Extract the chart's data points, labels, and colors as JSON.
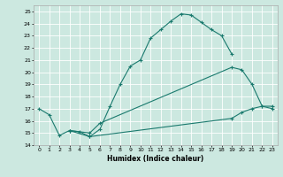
{
  "title": "",
  "xlabel": "Humidex (Indice chaleur)",
  "background_color": "#cce8e0",
  "grid_color": "#ffffff",
  "line_color": "#1a7a6e",
  "xlim": [
    -0.5,
    23.5
  ],
  "ylim": [
    14,
    25.5
  ],
  "xticks": [
    0,
    1,
    2,
    3,
    4,
    5,
    6,
    7,
    8,
    9,
    10,
    11,
    12,
    13,
    14,
    15,
    16,
    17,
    18,
    19,
    20,
    21,
    22,
    23
  ],
  "yticks": [
    14,
    15,
    16,
    17,
    18,
    19,
    20,
    21,
    22,
    23,
    24,
    25
  ],
  "series": [
    {
      "x": [
        0,
        1,
        2,
        3,
        4,
        5,
        6,
        7,
        8,
        9,
        10,
        11,
        12,
        13,
        14,
        15,
        16,
        17,
        18,
        19
      ],
      "y": [
        17.0,
        16.5,
        14.8,
        15.2,
        15.1,
        14.7,
        15.3,
        17.2,
        19.0,
        20.5,
        21.0,
        22.8,
        23.5,
        24.2,
        24.8,
        24.7,
        24.1,
        23.5,
        23.0,
        21.5
      ]
    },
    {
      "x": [
        3,
        5,
        6,
        19,
        20,
        21,
        22,
        23
      ],
      "y": [
        15.2,
        15.0,
        15.8,
        20.4,
        20.2,
        19.0,
        17.2,
        17.0
      ]
    },
    {
      "x": [
        3,
        5,
        19,
        20,
        21,
        22,
        23
      ],
      "y": [
        15.2,
        14.7,
        16.2,
        16.7,
        17.0,
        17.2,
        17.2
      ]
    }
  ]
}
